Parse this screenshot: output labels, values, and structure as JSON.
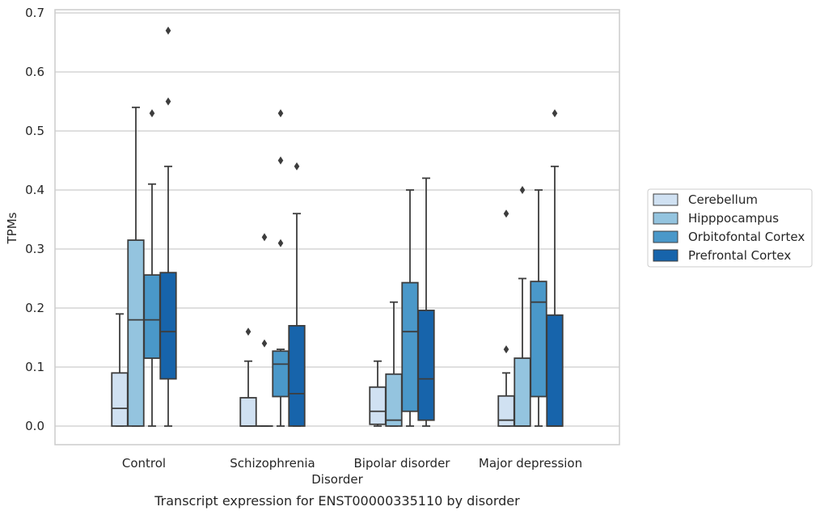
{
  "chart_data": {
    "type": "box",
    "xlabel": "Disorder",
    "ylabel": "TPMs",
    "caption": "Transcript expression for ENST00000335110 by disorder",
    "ylim": [
      -0.033,
      0.705
    ],
    "yticks": [
      "0.0",
      "0.1",
      "0.2",
      "0.3",
      "0.4",
      "0.5",
      "0.6",
      "0.7"
    ],
    "ytick_values": [
      0.0,
      0.1,
      0.2,
      0.3,
      0.4,
      0.5,
      0.6,
      0.7
    ],
    "grid": "horizontal",
    "legend_position": "right",
    "categories": [
      "Control",
      "Schizophrenia",
      "Bipolar disorder",
      "Major depression"
    ],
    "series": [
      {
        "name": "Cerebellum",
        "color": "#d0e1f2",
        "boxes": [
          {
            "whislo": 0.0,
            "q1": 0.0,
            "med": 0.03,
            "q3": 0.09,
            "whishi": 0.19,
            "fliers": []
          },
          {
            "whislo": 0.0,
            "q1": 0.0,
            "med": 0.0,
            "q3": 0.048,
            "whishi": 0.11,
            "fliers": [
              0.16
            ]
          },
          {
            "whislo": 0.0,
            "q1": 0.003,
            "med": 0.025,
            "q3": 0.066,
            "whishi": 0.11,
            "fliers": []
          },
          {
            "whislo": 0.0,
            "q1": 0.0,
            "med": 0.01,
            "q3": 0.051,
            "whishi": 0.09,
            "fliers": [
              0.13,
              0.36
            ]
          }
        ]
      },
      {
        "name": "Hipppocampus",
        "color": "#94c4df",
        "boxes": [
          {
            "whislo": 0.0,
            "q1": 0.0,
            "med": 0.18,
            "q3": 0.315,
            "whishi": 0.54,
            "fliers": []
          },
          {
            "whislo": 0.0,
            "q1": 0.0,
            "med": 0.0,
            "q3": 0.0,
            "whishi": 0.0,
            "fliers": [
              0.14,
              0.32
            ]
          },
          {
            "whislo": 0.0,
            "q1": 0.0,
            "med": 0.01,
            "q3": 0.088,
            "whishi": 0.21,
            "fliers": []
          },
          {
            "whislo": 0.0,
            "q1": 0.0,
            "med": 0.0,
            "q3": 0.115,
            "whishi": 0.25,
            "fliers": [
              0.4
            ]
          }
        ]
      },
      {
        "name": "Orbitofontal Cortex",
        "color": "#4a98c9",
        "boxes": [
          {
            "whislo": 0.0,
            "q1": 0.115,
            "med": 0.18,
            "q3": 0.256,
            "whishi": 0.41,
            "fliers": [
              0.53
            ]
          },
          {
            "whislo": 0.0,
            "q1": 0.05,
            "med": 0.105,
            "q3": 0.127,
            "whishi": 0.13,
            "fliers": [
              0.31,
              0.45,
              0.53
            ]
          },
          {
            "whislo": 0.0,
            "q1": 0.025,
            "med": 0.16,
            "q3": 0.243,
            "whishi": 0.4,
            "fliers": []
          },
          {
            "whislo": 0.0,
            "q1": 0.05,
            "med": 0.21,
            "q3": 0.245,
            "whishi": 0.4,
            "fliers": []
          }
        ]
      },
      {
        "name": "Prefrontal Cortex",
        "color": "#1764ab",
        "boxes": [
          {
            "whislo": 0.0,
            "q1": 0.08,
            "med": 0.16,
            "q3": 0.26,
            "whishi": 0.44,
            "fliers": [
              0.55,
              0.67
            ]
          },
          {
            "whislo": 0.0,
            "q1": 0.0,
            "med": 0.055,
            "q3": 0.17,
            "whishi": 0.36,
            "fliers": [
              0.44
            ]
          },
          {
            "whislo": 0.0,
            "q1": 0.01,
            "med": 0.08,
            "q3": 0.196,
            "whishi": 0.42,
            "fliers": []
          },
          {
            "whislo": 0.0,
            "q1": 0.0,
            "med": 0.0,
            "q3": 0.188,
            "whishi": 0.44,
            "fliers": [
              0.53
            ]
          }
        ]
      }
    ]
  }
}
